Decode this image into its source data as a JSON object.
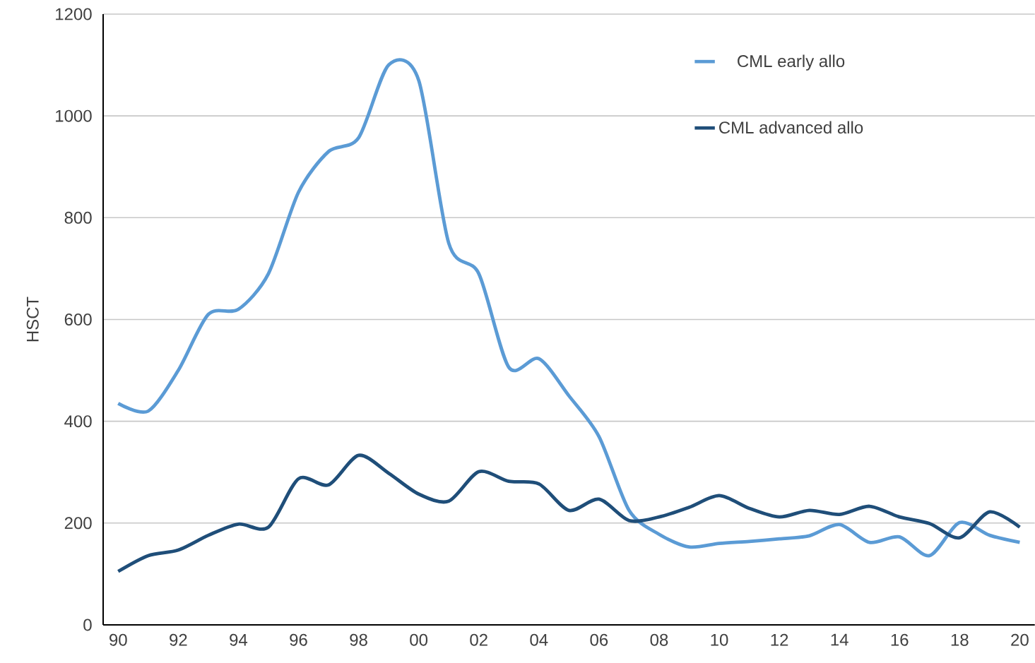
{
  "chart_data": {
    "type": "line",
    "ylabel": "HSCT",
    "categories": [
      "90",
      null,
      "92",
      null,
      "94",
      null,
      "96",
      null,
      "98",
      null,
      "00",
      null,
      "02",
      null,
      "04",
      null,
      "06",
      null,
      "08",
      null,
      "10",
      null,
      "12",
      null,
      "14",
      null,
      "16",
      null,
      "18",
      null,
      "20"
    ],
    "series": [
      {
        "name": "CML early allo",
        "color": "#5b9bd5",
        "values": [
          435,
          420,
          500,
          610,
          620,
          690,
          850,
          930,
          957,
          1100,
          1070,
          750,
          690,
          506,
          523,
          450,
          370,
          225,
          178,
          153,
          160,
          164,
          169,
          175,
          197,
          162,
          173,
          136,
          201,
          176,
          162
        ]
      },
      {
        "name": "CML advanced allo",
        "color": "#1f4e79",
        "values": [
          105,
          136,
          147,
          176,
          198,
          192,
          287,
          275,
          333,
          298,
          257,
          243,
          301,
          282,
          277,
          225,
          247,
          205,
          212,
          231,
          254,
          229,
          212,
          225,
          217,
          233,
          212,
          199,
          171,
          222,
          192
        ]
      }
    ],
    "ylim": [
      0,
      1200
    ],
    "yticks": [
      0,
      200,
      400,
      600,
      800,
      1000,
      1200
    ],
    "grid": "y",
    "legend": "top right",
    "marker": "none",
    "line_style": "solid"
  }
}
